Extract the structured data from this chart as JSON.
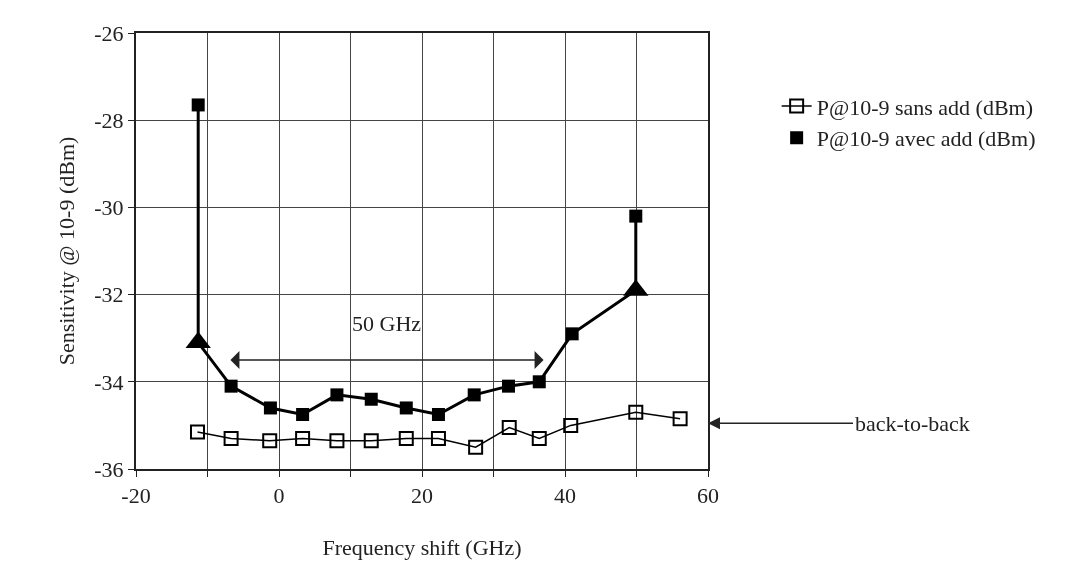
{
  "chart_data": {
    "type": "line",
    "xlabel": "Frequency shift (GHz)",
    "ylabel": "Sensitivity @ 10-9 (dBm)",
    "xlim": [
      -20,
      60
    ],
    "xticks": [
      -20,
      {
        "value": -10,
        "label": null
      },
      0,
      {
        "value": 10,
        "label": null
      },
      20,
      {
        "value": 30,
        "label": null
      },
      40,
      {
        "value": 50,
        "label": null
      },
      60
    ],
    "ylim": [
      -36,
      -26
    ],
    "yticks": [
      -36,
      -34,
      -32,
      -30,
      -28,
      -26
    ],
    "grid": true,
    "legend": "right",
    "series": [
      {
        "name": "P@10-9 sans add (dBm)",
        "marker": "square-open",
        "color": "#000000",
        "x": [
          -11.4,
          -6.7,
          -1.3,
          3.3,
          8.1,
          12.9,
          17.8,
          22.3,
          27.5,
          32.2,
          36.4,
          40.8,
          49.9,
          56.1
        ],
        "values": [
          -35.15,
          -35.3,
          -35.35,
          -35.3,
          -35.35,
          -35.35,
          -35.3,
          -35.3,
          -35.5,
          -35.05,
          -35.3,
          -35.0,
          -34.7,
          -34.85
        ]
      },
      {
        "marker": "none",
        "color": "#000000",
        "x": [
          -11.3,
          -11.3,
          -6.7,
          -1.2,
          3.3,
          8.1,
          12.9,
          17.8,
          22.3,
          27.3,
          32.1,
          36.4,
          41.0,
          49.9,
          49.9
        ],
        "values": [
          -27.65,
          -33.1,
          -34.1,
          -34.6,
          -34.75,
          -34.3,
          -34.4,
          -34.6,
          -34.75,
          -34.3,
          -34.1,
          -34.0,
          -32.9,
          -31.9,
          -30.2
        ]
      },
      {
        "name": "P@10-9 avec add (dBm)",
        "type": "scatter",
        "marker": "square",
        "color": "#000000",
        "x": [
          -11.3,
          -6.7,
          -1.2,
          3.3,
          8.1,
          12.9,
          17.8,
          22.3,
          27.3,
          32.1,
          36.4,
          41.0,
          49.9
        ],
        "values": [
          -27.65,
          -34.1,
          -34.6,
          -34.75,
          -34.3,
          -34.4,
          -34.6,
          -34.75,
          -34.3,
          -34.1,
          -34.0,
          -32.9,
          -30.2
        ]
      },
      {
        "type": "scatter",
        "marker": "triangle",
        "color": "#000000",
        "x": [
          -11.3,
          49.9
        ],
        "values": [
          -33.1,
          -31.9
        ]
      }
    ],
    "annotations": [
      "50 GHz",
      "back-to-back"
    ]
  }
}
